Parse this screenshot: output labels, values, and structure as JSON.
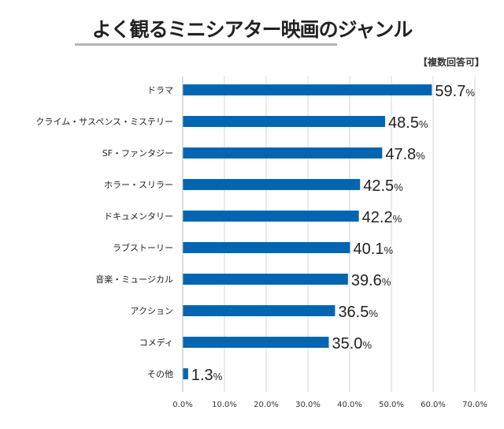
{
  "chart_data": {
    "type": "bar",
    "orientation": "horizontal",
    "title": "よく観るミニシアター映画のジャンル",
    "note": "【複数回答可】",
    "categories": [
      "ドラマ",
      "クライム・サスペンス・ミステリー",
      "SF・ファンタジー",
      "ホラー・スリラー",
      "ドキュメンタリー",
      "ラブストーリー",
      "音楽・ミュージカル",
      "アクション",
      "コメディ",
      "その他"
    ],
    "values": [
      59.7,
      48.5,
      47.8,
      42.5,
      42.2,
      40.1,
      39.6,
      36.5,
      35.0,
      1.3
    ],
    "value_unit": "%",
    "xlim": [
      0,
      70
    ],
    "xticks": [
      "0.0%",
      "10.0%",
      "20.0%",
      "30.0%",
      "40.0%",
      "50.0%",
      "60.0%",
      "70.0%"
    ],
    "grid": "vertical",
    "bar_color": "#0066b3"
  }
}
